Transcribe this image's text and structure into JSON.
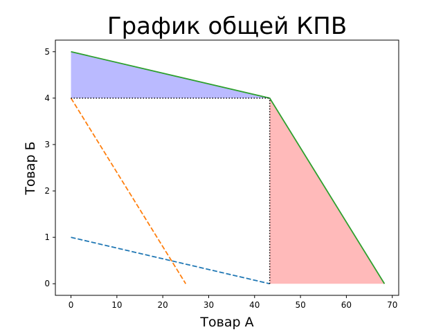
{
  "chart_data": {
    "type": "line",
    "title": "График общей КПВ",
    "xlabel": "Товар А",
    "ylabel": "Товар Б",
    "xlim": [
      -3.4,
      71.4
    ],
    "ylim": [
      -0.25,
      5.25
    ],
    "xticks": [
      0,
      10,
      20,
      30,
      40,
      50,
      60,
      70
    ],
    "yticks": [
      0,
      1,
      2,
      3,
      4,
      5
    ],
    "grid": false,
    "legend": "none",
    "series": [
      {
        "x": [
          0,
          43.3
        ],
        "y": [
          1,
          0
        ],
        "style": "dashed",
        "color": "#1f77b4"
      },
      {
        "x": [
          0,
          25
        ],
        "y": [
          4,
          0
        ],
        "style": "dashed",
        "color": "#ff7f0e"
      },
      {
        "x": [
          0,
          43.3,
          68.3
        ],
        "y": [
          5,
          4,
          0
        ],
        "style": "solid",
        "color": "#2ca02c"
      }
    ],
    "filled_regions": [
      {
        "points": [
          [
            0,
            5
          ],
          [
            43.3,
            4
          ],
          [
            0,
            4
          ]
        ],
        "color": "#0000ff",
        "opacity": 0.27
      },
      {
        "points": [
          [
            43.3,
            4
          ],
          [
            68.3,
            0
          ],
          [
            43.3,
            0
          ]
        ],
        "color": "#ff0000",
        "opacity": 0.27
      }
    ],
    "reference_lines": [
      {
        "x": [
          0,
          43.3
        ],
        "y": [
          4,
          4
        ],
        "style": "dotted",
        "color": "#000000"
      },
      {
        "x": [
          43.3,
          43.3
        ],
        "y": [
          0,
          4
        ],
        "style": "dotted",
        "color": "#000000"
      }
    ]
  }
}
